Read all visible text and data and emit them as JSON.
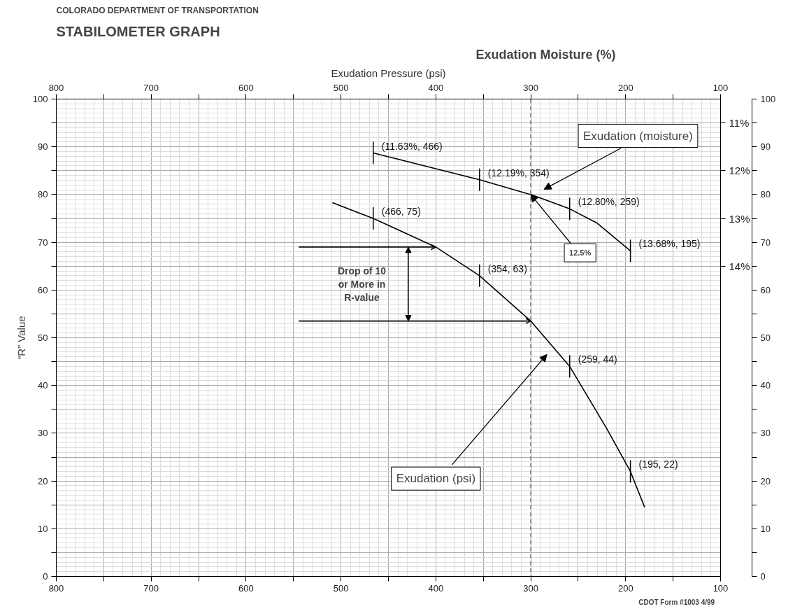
{
  "chart_data": {
    "type": "line",
    "title": "STABILOMETER GRAPH",
    "subtitle": "COLORADO DEPARTMENT OF TRANSPORTATION",
    "x2label": "Exudation Pressure (psi)",
    "y2label": "Exudation Moisture (%)",
    "ylabel": "“R” Value",
    "xlim": [
      800,
      100
    ],
    "xticks": [
      800,
      {
        "value": 750,
        "label": null
      },
      700,
      {
        "value": 650,
        "label": null
      },
      600,
      {
        "value": 550,
        "label": null
      },
      500,
      {
        "value": 450,
        "label": null
      },
      400,
      {
        "value": 350,
        "label": null
      },
      300,
      {
        "value": 250,
        "label": null
      },
      200,
      {
        "value": 150,
        "label": null
      },
      100
    ],
    "x2lim": [
      800,
      100
    ],
    "x2ticks": [
      800,
      {
        "value": 750,
        "label": null
      },
      700,
      {
        "value": 650,
        "label": null
      },
      600,
      {
        "value": 550,
        "label": null
      },
      500,
      {
        "value": 450,
        "label": null
      },
      400,
      {
        "value": 350,
        "label": null
      },
      300,
      {
        "value": 250,
        "label": null
      },
      200,
      {
        "value": 150,
        "label": null
      },
      100
    ],
    "ylim": [
      0,
      100
    ],
    "yticks": [
      0,
      {
        "value": 5,
        "label": null
      },
      10,
      {
        "value": 15,
        "label": null
      },
      20,
      {
        "value": 25,
        "label": null
      },
      30,
      {
        "value": 35,
        "label": null
      },
      40,
      {
        "value": 45,
        "label": null
      },
      50,
      {
        "value": 55,
        "label": null
      },
      60,
      {
        "value": 65,
        "label": null
      },
      70,
      {
        "value": 75,
        "label": null
      },
      80,
      {
        "value": 85,
        "label": null
      },
      90,
      {
        "value": 95,
        "label": null
      },
      100
    ],
    "y3lim": [
      0,
      100
    ],
    "y3ticks": [
      0,
      {
        "value": 5,
        "label": null
      },
      10,
      {
        "value": 15,
        "label": null
      },
      20,
      {
        "value": 25,
        "label": null
      },
      30,
      {
        "value": 35,
        "label": null
      },
      40,
      {
        "value": 45,
        "label": null
      },
      50,
      {
        "value": 55,
        "label": null
      },
      60,
      {
        "value": 65,
        "label": null
      },
      70,
      {
        "value": 75,
        "label": null
      },
      80,
      {
        "value": 85,
        "label": null
      },
      90,
      {
        "value": 95,
        "label": null
      },
      100
    ],
    "y2lim": [
      20.5,
      10.5
    ],
    "y2ticks": [
      {
        "value": 11,
        "label": "11%"
      },
      {
        "value": 12,
        "label": "12%"
      },
      {
        "value": 13,
        "label": "13%"
      },
      {
        "value": 14,
        "label": "14%"
      }
    ],
    "grid": true,
    "series": [
      {
        "color": "#000000",
        "x": [
          509,
          466,
          400,
          354,
          300,
          259,
          220,
          195,
          180
        ],
        "values": [
          78.3,
          75,
          69,
          63,
          53.5,
          44,
          31,
          22,
          14.5
        ],
        "value_labels": [
          null,
          "(466, 75)",
          null,
          "(354, 63)",
          null,
          "(259, 44)",
          null,
          "(195, 22)",
          null
        ]
      },
      {
        "axis": "y2",
        "color": "#000000",
        "x": [
          466,
          354,
          300,
          259,
          230,
          195
        ],
        "values": [
          11.63,
          12.19,
          12.5,
          12.8,
          13.1,
          13.68
        ],
        "value_labels": [
          "(11.63%, 466)",
          "(12.19%, 354)",
          null,
          "(12.80%, 259)",
          null,
          "(13.68%, 195)"
        ]
      }
    ],
    "ref_lines": [
      {
        "axis": "x",
        "value": 300,
        "label": null,
        "line_style": "dashed"
      },
      {
        "axis": "y",
        "value": 69,
        "label": null
      },
      {
        "axis": "y",
        "value": 53.5,
        "label": null
      }
    ],
    "annotations": [
      "Exudation (moisture)",
      {
        "text": "12.5%",
        "x": 300,
        "y": 80
      },
      "Exudation (psi)",
      "Drop of 10 or More in R-value",
      "CDOT Form #1003    4/99"
    ]
  }
}
